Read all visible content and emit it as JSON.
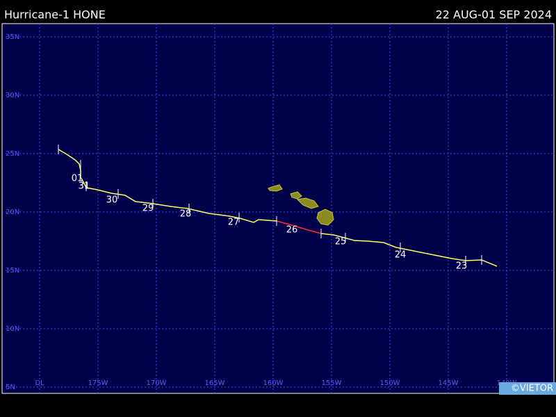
{
  "header": {
    "title": "Hurricane-1 HONE",
    "dates": "22 AUG-01 SEP 2024"
  },
  "map": {
    "lat_labels": [
      "35N",
      "30N",
      "25N",
      "20N",
      "15N",
      "10N",
      "5N"
    ],
    "lon_labels": [
      "DL",
      "175W",
      "170W",
      "165W",
      "160W",
      "155W",
      "150W",
      "145W",
      "140W"
    ],
    "day_labels": [
      "01",
      "31",
      "30",
      "29",
      "28",
      "27",
      "26",
      "25",
      "24",
      "23"
    ]
  },
  "footer": {
    "credit": "©VIETOR"
  }
}
